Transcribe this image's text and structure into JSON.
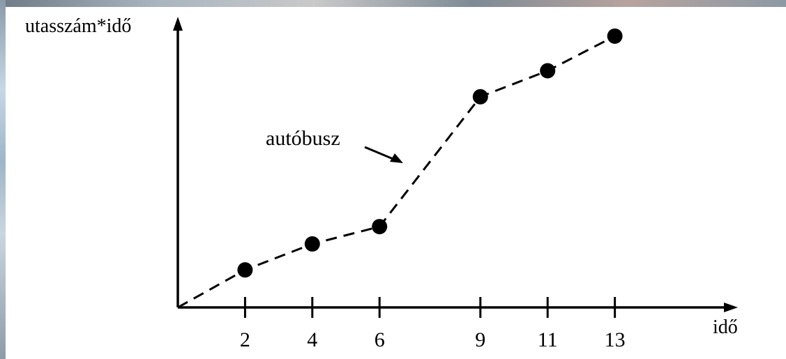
{
  "chart_data": {
    "type": "line",
    "ylabel": "utasszám*idő",
    "xlabel": "idő",
    "x": [
      2,
      4,
      6,
      9,
      11,
      13
    ],
    "series": [
      {
        "name": "autóbusz",
        "values": [
          1.3,
          2.2,
          2.8,
          7.3,
          8.2,
          9.4
        ]
      }
    ],
    "origin": [
      0,
      0
    ],
    "ylim": [
      0,
      10
    ],
    "xlim": [
      0,
      16
    ],
    "annotation": "autóbusz",
    "line_style": "dashed",
    "marker": "filled-circle",
    "grid": false
  }
}
